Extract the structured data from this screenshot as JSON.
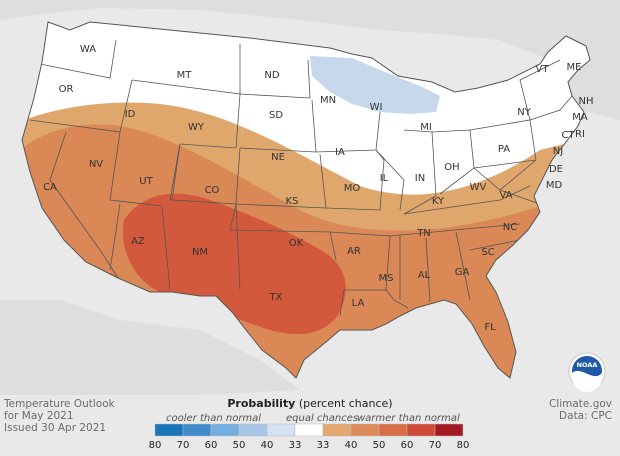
{
  "legend": {
    "title_bold": "Probability",
    "title_rest": "(percent chance)",
    "cooler_label": "cooler than normal",
    "equal_label": "equal chances",
    "warmer_label": "warmer than normal",
    "ticks": [
      "80",
      "70",
      "60",
      "50",
      "40",
      "33",
      "33",
      "40",
      "50",
      "60",
      "70",
      "80"
    ],
    "colors": [
      "#1a74b8",
      "#3f8ccc",
      "#74aede",
      "#a8c6e8",
      "#d3e1f1",
      "#ffffff",
      "#e3a76f",
      "#de8a5a",
      "#d86d48",
      "#cf4b37",
      "#a51a22"
    ]
  },
  "footer": {
    "line1": "Temperature Outlook",
    "line2": "for May 2021",
    "line3": "Issued 30 Apr 2021",
    "source1": "Climate.gov",
    "source2": "Data: CPC"
  },
  "noaa": {
    "text": "NOAA"
  },
  "states": [
    "WA",
    "OR",
    "CA",
    "NV",
    "ID",
    "MT",
    "WY",
    "UT",
    "AZ",
    "CO",
    "NM",
    "ND",
    "SD",
    "NE",
    "KS",
    "OK",
    "TX",
    "MN",
    "IA",
    "MO",
    "AR",
    "LA",
    "WI",
    "IL",
    "MI",
    "IN",
    "KY",
    "TN",
    "MS",
    "AL",
    "GA",
    "FL",
    "SC",
    "NC",
    "VA",
    "WV",
    "OH",
    "PA",
    "NY",
    "MD",
    "DE",
    "NJ",
    "CT",
    "RI",
    "MA",
    "NH",
    "VT",
    "ME"
  ]
}
